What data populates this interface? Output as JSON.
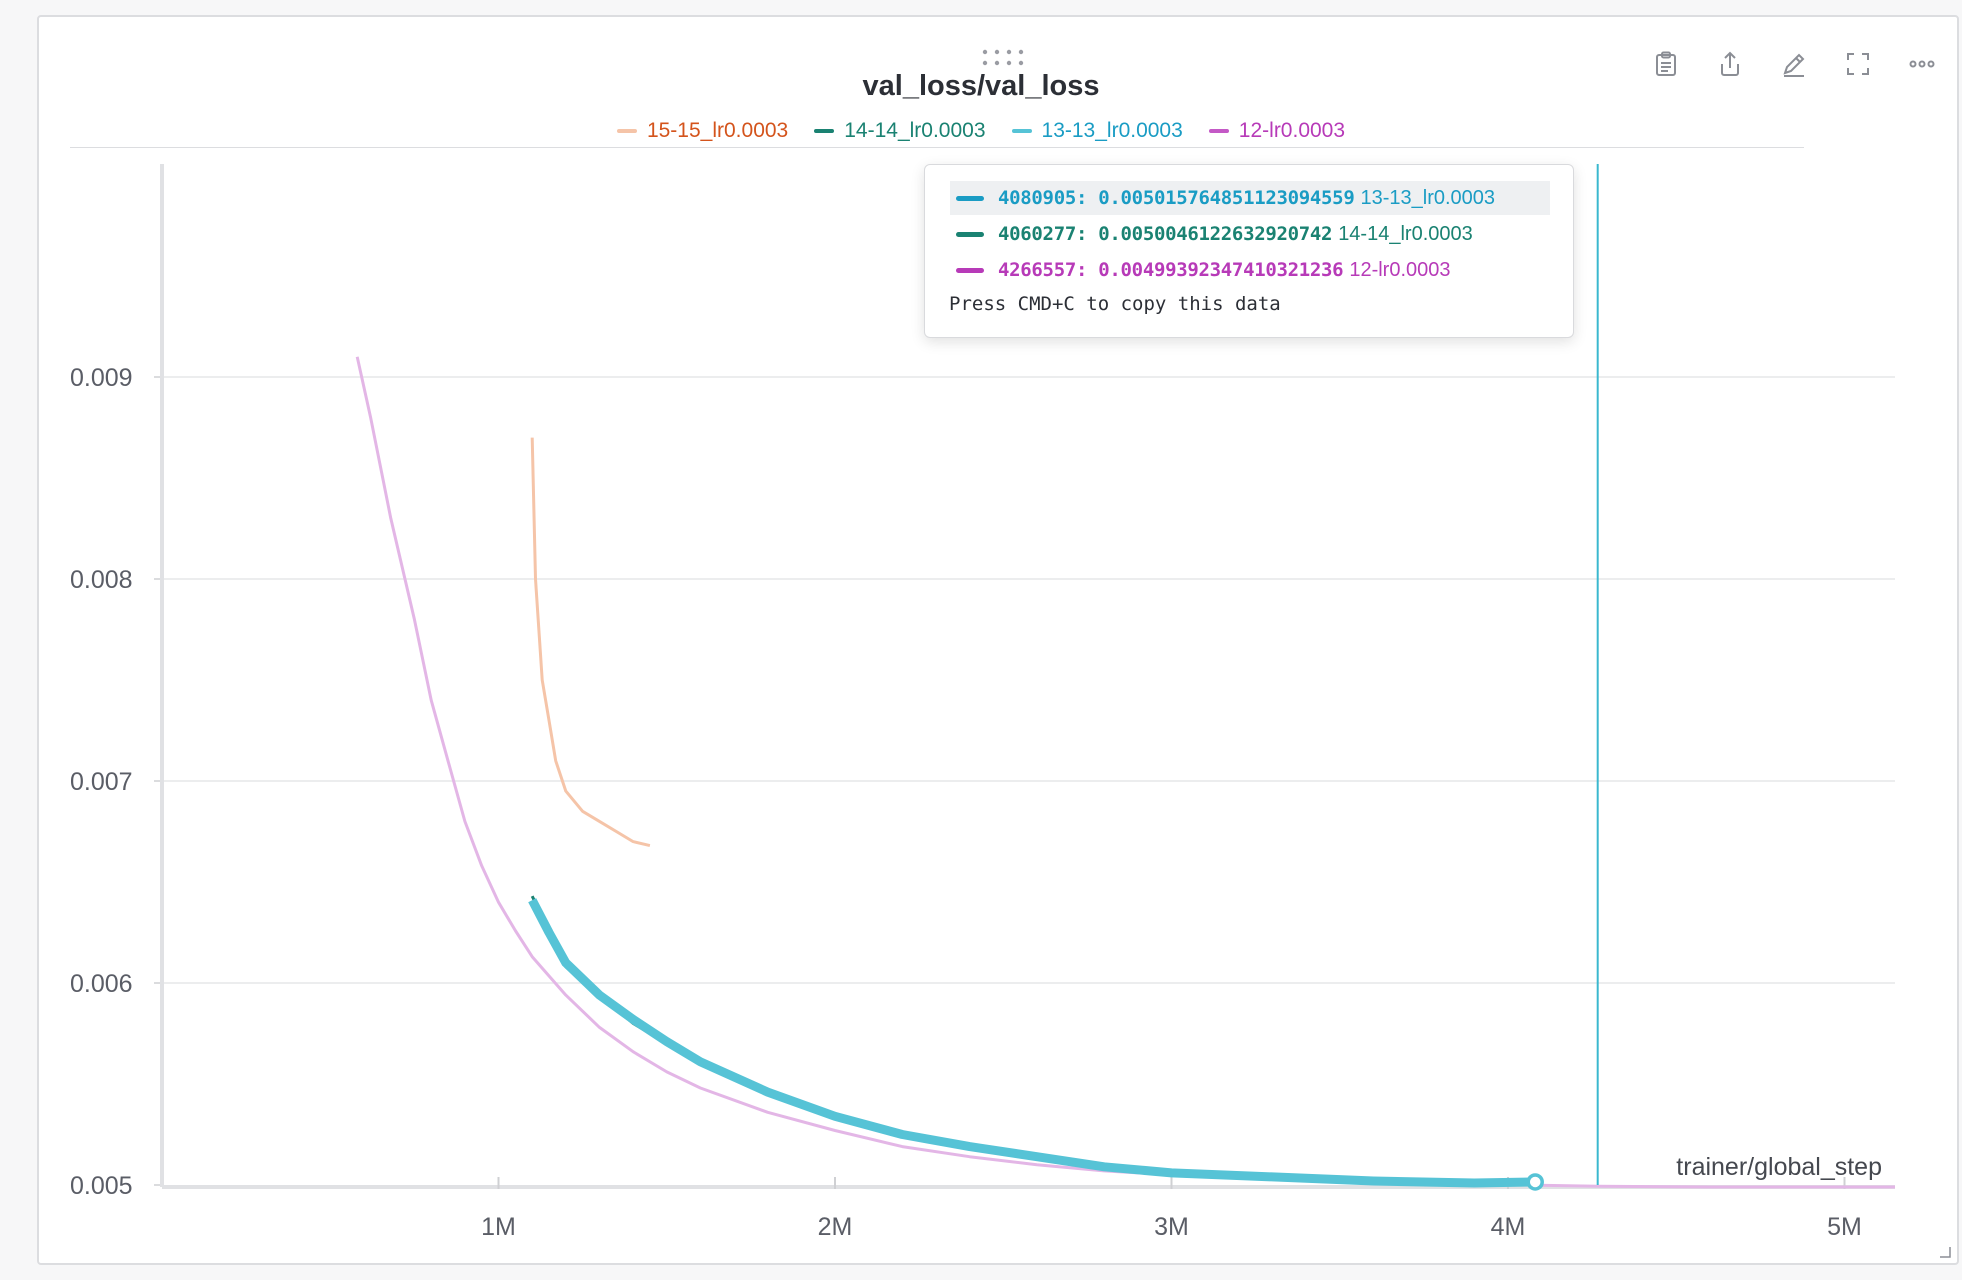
{
  "panel": {
    "icons": [
      "drag-handle-icon",
      "clipboard-icon",
      "share-icon",
      "edit-icon",
      "fullscreen-icon",
      "more-icon"
    ]
  },
  "chart_data": {
    "type": "line",
    "title": "val_loss/val_loss",
    "xlabel": "trainer/global_step",
    "ylabel": "",
    "xlim": [
      0,
      5150000
    ],
    "ylim": [
      0.005,
      0.0092
    ],
    "y_ticks": [
      0.005,
      0.006,
      0.007,
      0.008,
      0.009
    ],
    "y_tick_labels": [
      "0.005",
      "0.006",
      "0.007",
      "0.008",
      "0.009"
    ],
    "x_ticks": [
      1000000,
      2000000,
      3000000,
      4000000,
      5000000
    ],
    "x_tick_labels": [
      "1M",
      "2M",
      "3M",
      "4M",
      "5M"
    ],
    "grid": true,
    "legend_position": "top-center",
    "series": [
      {
        "name": "15-15_lr0.0003",
        "color": "#f5c4a8",
        "legend_text_color": "#d4541c",
        "x": [
          1100000,
          1110000,
          1130000,
          1150000,
          1170000,
          1200000,
          1250000,
          1300000,
          1350000,
          1400000,
          1450000
        ],
        "values": [
          0.0087,
          0.008,
          0.0075,
          0.0073,
          0.0071,
          0.00695,
          0.00685,
          0.0068,
          0.00675,
          0.0067,
          0.00668
        ]
      },
      {
        "name": "14-14_lr0.0003",
        "color": "#1a8272",
        "legend_text_color": "#1a8272",
        "x": [
          1100000,
          1200000,
          1400000,
          1600000,
          1800000,
          2000000,
          2200000,
          2400000,
          2600000,
          2800000,
          3000000,
          3300000,
          3600000,
          3900000,
          4060277
        ],
        "values": [
          0.00643,
          0.00608,
          0.0058,
          0.0056,
          0.00545,
          0.00533,
          0.00524,
          0.00518,
          0.00513,
          0.00509,
          0.00506,
          0.00504,
          0.00502,
          0.00501,
          0.005005
        ]
      },
      {
        "name": "13-13_lr0.0003",
        "color": "#56c3d6",
        "legend_text_color": "#1a9cc4",
        "x": [
          1100000,
          1150000,
          1200000,
          1300000,
          1400000,
          1500000,
          1600000,
          1800000,
          2000000,
          2200000,
          2400000,
          2600000,
          2800000,
          3000000,
          3300000,
          3600000,
          3900000,
          4080905
        ],
        "values": [
          0.00641,
          0.00625,
          0.0061,
          0.00594,
          0.00582,
          0.00571,
          0.00561,
          0.00546,
          0.00534,
          0.00525,
          0.00519,
          0.00514,
          0.00509,
          0.00506,
          0.00504,
          0.00502,
          0.00501,
          0.005015
        ]
      },
      {
        "name": "12-lr0.0003",
        "color": "#e3b6e6",
        "legend_text_color": "#b73ab8",
        "x": [
          580000,
          620000,
          680000,
          750000,
          800000,
          850000,
          900000,
          950000,
          1000000,
          1050000,
          1100000,
          1200000,
          1300000,
          1400000,
          1500000,
          1600000,
          1800000,
          2000000,
          2200000,
          2400000,
          2600000,
          2800000,
          3000000,
          3300000,
          3600000,
          3900000,
          4266557,
          4600000,
          5150000
        ],
        "values": [
          0.0091,
          0.0088,
          0.0083,
          0.0078,
          0.0074,
          0.0071,
          0.0068,
          0.00658,
          0.0064,
          0.00626,
          0.00613,
          0.00594,
          0.00578,
          0.00566,
          0.00556,
          0.00548,
          0.00536,
          0.00527,
          0.00519,
          0.00514,
          0.0051,
          0.00507,
          0.00505,
          0.00503,
          0.00501,
          0.005004,
          0.004994,
          0.00499,
          0.00499
        ]
      }
    ],
    "hover_x": 4266557,
    "tooltip": {
      "rows": [
        {
          "step": "4080905",
          "value": "0.005015764851123094559",
          "name": "13-13_lr0.0003",
          "color": "#1a9cc4",
          "highlight": true
        },
        {
          "step": "4060277",
          "value": "0.005004612263292074​2",
          "name": "14-14_lr0.0003",
          "color": "#1a8272",
          "highlight": false
        },
        {
          "step": "4266557",
          "value": "0.004993923474103212​36",
          "name": "12-lr0.0003",
          "color": "#b73ab8",
          "highlight": false
        }
      ],
      "hint": "Press CMD+C to copy this data"
    }
  }
}
